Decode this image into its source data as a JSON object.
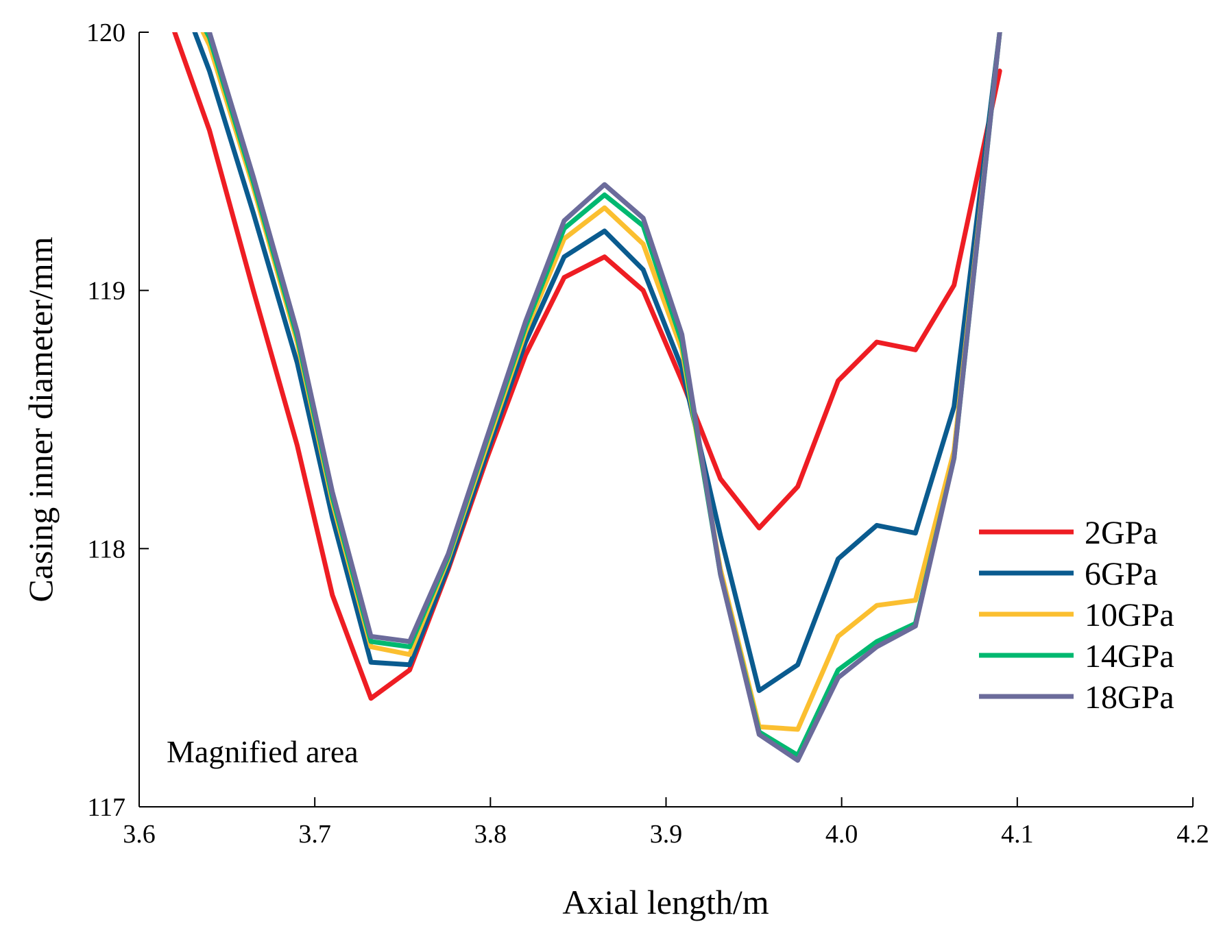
{
  "chart_data": {
    "type": "line",
    "title": "",
    "xlabel": "Axial length/m",
    "ylabel": "Casing inner diameter/mm",
    "xlim": [
      3.6,
      4.2
    ],
    "ylim": [
      117,
      120
    ],
    "xticks": [
      "3.6",
      "3.7",
      "3.8",
      "3.9",
      "4.0",
      "4.1",
      "4.2"
    ],
    "yticks": [
      "117",
      "118",
      "119",
      "120"
    ],
    "annotation": "Magnified area",
    "legend_position": "right",
    "x": [
      3.615,
      3.64,
      3.665,
      3.69,
      3.71,
      3.732,
      3.754,
      3.776,
      3.798,
      3.82,
      3.842,
      3.865,
      3.887,
      3.909,
      3.931,
      3.953,
      3.975,
      3.998,
      4.02,
      4.042,
      4.064,
      4.09
    ],
    "series": [
      {
        "name": "2GPa",
        "color": "#ee1d23",
        "values": [
          120.1,
          119.62,
          119.0,
          118.4,
          117.82,
          117.42,
          117.53,
          117.92,
          118.35,
          118.75,
          119.05,
          119.13,
          119.0,
          118.65,
          118.27,
          118.08,
          118.24,
          118.65,
          118.8,
          118.77,
          119.02,
          119.85
        ]
      },
      {
        "name": "6GPa",
        "color": "#0a5b8f",
        "values": [
          120.3,
          119.85,
          119.3,
          118.72,
          118.12,
          117.56,
          117.55,
          117.93,
          118.37,
          118.8,
          119.13,
          119.23,
          119.08,
          118.7,
          118.05,
          117.45,
          117.55,
          117.96,
          118.09,
          118.06,
          118.55,
          120.0
        ]
      },
      {
        "name": "10GPa",
        "color": "#fbbf30",
        "values": [
          120.3,
          119.95,
          119.4,
          118.8,
          118.18,
          117.62,
          117.59,
          117.96,
          118.4,
          118.84,
          119.2,
          119.32,
          119.18,
          118.77,
          117.92,
          117.31,
          117.3,
          117.66,
          117.78,
          117.8,
          118.38,
          120.0
        ]
      },
      {
        "name": "14GPa",
        "color": "#00b870",
        "values": [
          120.3,
          119.98,
          119.42,
          118.82,
          118.2,
          117.64,
          117.62,
          117.97,
          118.42,
          118.86,
          119.24,
          119.37,
          119.25,
          118.8,
          117.9,
          117.29,
          117.2,
          117.53,
          117.64,
          117.71,
          118.35,
          120.0
        ]
      },
      {
        "name": "18GPa",
        "color": "#6b6b9b",
        "values": [
          120.3,
          120.0,
          119.44,
          118.84,
          118.22,
          117.66,
          117.64,
          117.98,
          118.43,
          118.88,
          119.27,
          119.41,
          119.28,
          118.83,
          117.9,
          117.28,
          117.18,
          117.5,
          117.62,
          117.7,
          118.35,
          120.0
        ]
      }
    ]
  }
}
